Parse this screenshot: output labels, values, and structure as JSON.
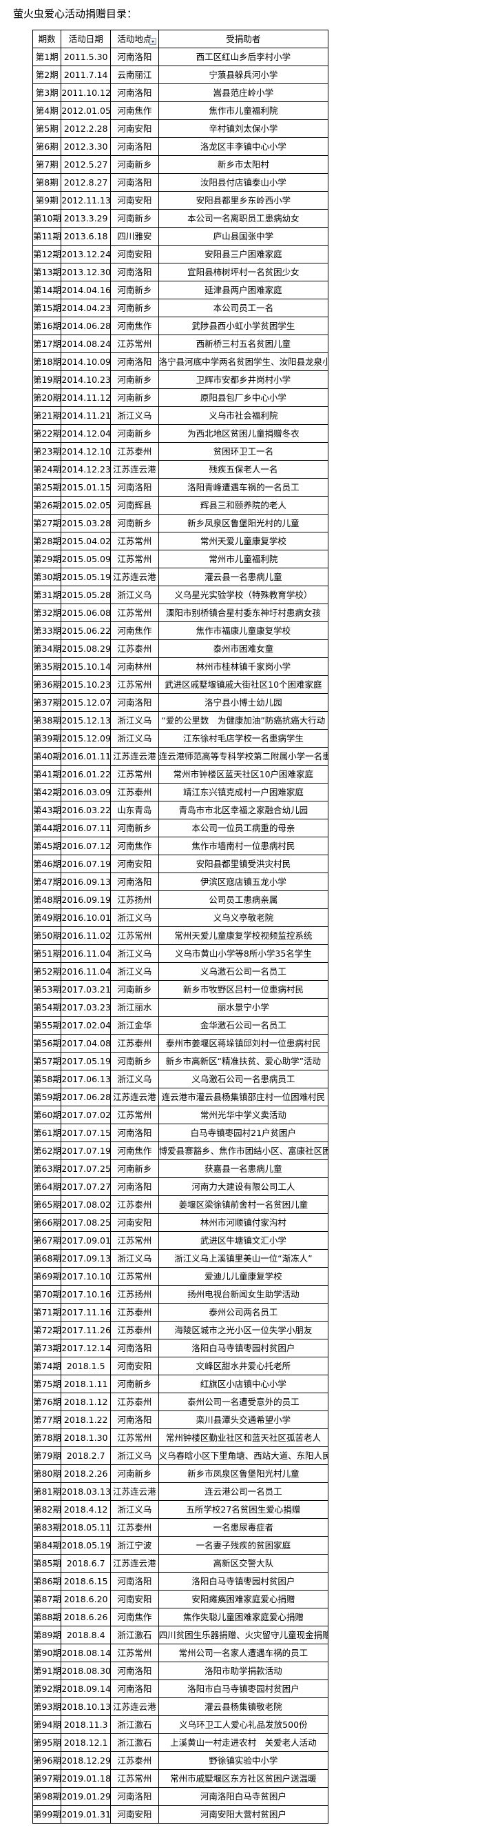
{
  "title": "萤火虫爱心活动捐赠目录：",
  "headers": [
    "期数",
    "活动日期",
    "活动地点",
    "受捐助者"
  ],
  "filter_icon": "dropdown-filter-icon",
  "rows": [
    [
      "第1期",
      "2011.5.30",
      "河南洛阳",
      "西工区红山乡后李村小学"
    ],
    [
      "第2期",
      "2011.7.14",
      "云南丽江",
      "宁蒗县躲兵河小学"
    ],
    [
      "第3期",
      "2011.10.12",
      "河南洛阳",
      "嵩县范庄岭小学"
    ],
    [
      "第4期",
      "2012.01.05",
      "河南焦作",
      "焦作市儿童福利院"
    ],
    [
      "第5期",
      "2012.2.28",
      "河南安阳",
      "辛村镇刘太保小学"
    ],
    [
      "第6期",
      "2012.3.30",
      "河南洛阳",
      "洛龙区丰李镇中心小学"
    ],
    [
      "第7期",
      "2012.5.27",
      "河南新乡",
      "新乡市太阳村"
    ],
    [
      "第8期",
      "2012.8.27",
      "河南洛阳",
      "汝阳县付店镇泰山小学"
    ],
    [
      "第9期",
      "2012.11.13",
      "河南安阳",
      "安阳县都里乡东岭西小学"
    ],
    [
      "第10期",
      "2013.3.29",
      "河南新乡",
      "本公司一名离职员工患病幼女"
    ],
    [
      "第11期",
      "2013.6.18",
      "四川雅安",
      "庐山县国张中学"
    ],
    [
      "第12期",
      "2013.12.24",
      "河南安阳",
      "安阳县三户困难家庭"
    ],
    [
      "第13期",
      "2013.12.30",
      "河南洛阳",
      "宜阳县柿树坪村一名贫困少女"
    ],
    [
      "第14期",
      "2014.04.16",
      "河南新乡",
      "延津县两户困难家庭"
    ],
    [
      "第15期",
      "2014.04.23",
      "河南新乡",
      "本公司员工一名"
    ],
    [
      "第16期",
      "2014.06.28",
      "河南焦作",
      "武陟县西小虹小学贫困学生"
    ],
    [
      "第17期",
      "2014.08.24",
      "江苏常州",
      "西新桥三村五名贫困儿童"
    ],
    [
      "第18期",
      "2014.10.09",
      "河南洛阳",
      "洛宁县河底中学两名贫困学生、汝阳县龙泉小学"
    ],
    [
      "第19期",
      "2014.10.23",
      "河南新乡",
      "卫辉市安都乡井岗村小学"
    ],
    [
      "第20期",
      "2014.11.12",
      "河南新乡",
      "原阳县包厂乡中心小学"
    ],
    [
      "第21期",
      "2014.11.21",
      "浙江义乌",
      "义乌市社会福利院"
    ],
    [
      "第22期",
      "2014.12.04",
      "河南新乡",
      "为西北地区贫困儿童捐赠冬衣"
    ],
    [
      "第23期",
      "2014.12.10",
      "江苏泰州",
      "贫困环卫工一名"
    ],
    [
      "第24期",
      "2014.12.23",
      "江苏连云港",
      "残疾五保老人一名"
    ],
    [
      "第25期",
      "2015.01.15",
      "河南洛阳",
      "洛阳青峰遭遇车祸的一名员工"
    ],
    [
      "第26期",
      "2015.02.05",
      "河南辉县",
      "辉县三和颐养院的老人"
    ],
    [
      "第27期",
      "2015.03.28",
      "河南新乡",
      "新乡凤泉区鲁堡阳光村的儿童"
    ],
    [
      "第28期",
      "2015.04.02",
      "江苏常州",
      "常州天爱儿童康复学校"
    ],
    [
      "第29期",
      "2015.05.09",
      "江苏常州",
      "常州市儿童福利院"
    ],
    [
      "第30期",
      "2015.05.19",
      "江苏连云港",
      "灌云县一名患病儿童"
    ],
    [
      "第31期",
      "2015.05.28",
      "浙江义乌",
      "义乌星光实验学校（特殊教育学校）"
    ],
    [
      "第32期",
      "2015.06.08",
      "江苏常州",
      "溧阳市别桥镇合星村委东神圩村患病女孩"
    ],
    [
      "第33期",
      "2015.06.22",
      "河南焦作",
      "焦作市福康儿童康复学校"
    ],
    [
      "第34期",
      "2015.08.29",
      "江苏泰州",
      "泰州市困难女童"
    ],
    [
      "第35期",
      "2015.10.14",
      "河南林州",
      "林州市桂林镇千家岗小学"
    ],
    [
      "第36期",
      "2015.10.23",
      "江苏常州",
      "武进区戚墅堰镇戚大街社区10个困难家庭"
    ],
    [
      "第37期",
      "2015.12.07",
      "河南洛阳",
      "洛宁县小博士幼儿园"
    ],
    [
      "第38期",
      "2015.12.13",
      "浙江义乌",
      "“爱的公里数　为健康加油”防癌抗癌大行动"
    ],
    [
      "第39期",
      "2015.12.09",
      "浙江义乌",
      "江东徐村毛店学校一名患病学生"
    ],
    [
      "第40期",
      "2016.01.11",
      "江苏连云港",
      "连云港师范高等专科学校第二附属小学一名患病学生"
    ],
    [
      "第41期",
      "2016.01.22",
      "江苏常州",
      "常州市钟楼区蓝天社区10户困难家庭"
    ],
    [
      "第42期",
      "2016.03.09",
      "江苏泰州",
      "靖江东兴镇克成村一户困难家庭"
    ],
    [
      "第43期",
      "2016.03.22",
      "山东青岛",
      "青岛市市北区幸福之家融合幼儿园"
    ],
    [
      "第44期",
      "2016.07.11",
      "河南新乡",
      "本公司一位员工病重的母亲"
    ],
    [
      "第45期",
      "2016.07.12",
      "河南焦作",
      "焦作市墙南村一位患病村民"
    ],
    [
      "第46期",
      "2016.07.19",
      "河南安阳",
      "安阳县都里镇受洪灾村民"
    ],
    [
      "第47期",
      "2016.09.13",
      "河南洛阳",
      "伊滨区寇店镇五龙小学"
    ],
    [
      "第48期",
      "2016.09.19",
      "江苏扬州",
      "公司员工患病亲属"
    ],
    [
      "第49期",
      "2016.10.01",
      "浙江义乌",
      "义乌义亭敬老院"
    ],
    [
      "第50期",
      "2016.11.02",
      "江苏常州",
      "常州天爱儿童康复学校视频监控系统"
    ],
    [
      "第51期",
      "2016.11.04",
      "浙江义乌",
      "义乌市黄山小学等8所小学35名学生"
    ],
    [
      "第52期",
      "2016.11.04",
      "浙江义乌",
      "义乌激石公司一名员工"
    ],
    [
      "第53期",
      "2017.03.21",
      "河南新乡",
      "新乡市牧野区吕村一位患病村民"
    ],
    [
      "第54期",
      "2017.03.23",
      "浙江丽水",
      "丽水景宁小学"
    ],
    [
      "第55期",
      "2017.02.04",
      "浙江金华",
      "金华激石公司一名员工"
    ],
    [
      "第56期",
      "2017.04.08",
      "江苏泰州",
      "泰州市姜堰区蒋垛镇邱刘村一位患病村民"
    ],
    [
      "第57期",
      "2017.05.19",
      "河南新乡",
      "新乡市高新区“精准扶贫、爱心助学”活动"
    ],
    [
      "第58期",
      "2017.06.13",
      "浙江义乌",
      "义乌激石公司一名患病员工"
    ],
    [
      "第59期",
      "2017.06.28",
      "江苏连云港",
      "连云港市灌云县杨集镇邵庄村一位困难村民"
    ],
    [
      "第60期",
      "2017.07.02",
      "江苏常州",
      "常州光华中学义卖活动"
    ],
    [
      "第61期",
      "2017.07.15",
      "河南洛阳",
      "白马寺镇枣园村21户贫困户"
    ],
    [
      "第62期",
      "2017.07.19",
      "河南焦作",
      "博爱县寨豁乡、焦作市团结小区、富康社区困难学生"
    ],
    [
      "第63期",
      "2017.07.25",
      "河南新乡",
      "获嘉县一名患病儿童"
    ],
    [
      "第64期",
      "2017.07.27",
      "河南洛阳",
      "河南力大建设有限公司工人"
    ],
    [
      "第65期",
      "2017.08.02",
      "江苏泰州",
      "姜堰区梁徐镇前舍村一名贫困儿童"
    ],
    [
      "第66期",
      "2017.08.25",
      "河南安阳",
      "林州市河顺镇付家沟村"
    ],
    [
      "第67期",
      "2017.09.01",
      "江苏常州",
      "武进区牛塘镇文汇小学"
    ],
    [
      "第68期",
      "2017.09.13",
      "浙江义乌",
      "浙江义乌上溪镇里美山一位“渐冻人”"
    ],
    [
      "第69期",
      "2017.10.10",
      "江苏常州",
      "爱迪儿儿童康复学校"
    ],
    [
      "第70期",
      "2017.10.16",
      "江苏扬州",
      "扬州电视台新闻女生助学活动"
    ],
    [
      "第71期",
      "2017.11.16",
      "江苏泰州",
      "泰州公司两名员工"
    ],
    [
      "第72期",
      "2017.11.26",
      "江苏泰州",
      "海陵区城市之光小区一位失学小朋友"
    ],
    [
      "第73期",
      "2017.12.14",
      "河南洛阳",
      "洛阳白马寺镇枣园村贫困户"
    ],
    [
      "第74期",
      "2018.1.5",
      "河南安阳",
      "文峰区甜水井爱心托老所"
    ],
    [
      "第75期",
      "2018.1.11",
      "河南新乡",
      "红旗区小店镇中心小学"
    ],
    [
      "第76期",
      "2018.1.12",
      "江苏泰州",
      "泰州公司一名遭受意外的员工"
    ],
    [
      "第77期",
      "2018.1.22",
      "河南洛阳",
      "栾川县潭头交通希望小学"
    ],
    [
      "第78期",
      "2018.1.30",
      "江苏常州",
      "常州钟楼区勤业社区和蓝天社区孤苦老人"
    ],
    [
      "第79期",
      "2018.2.7",
      "浙江义乌",
      "义乌春晗小区下里角塘、西站大道、东阳人民医院"
    ],
    [
      "第80期",
      "2018.2.26",
      "河南新乡",
      "新乡市凤泉区鲁堡阳光村儿童"
    ],
    [
      "第81期",
      "2018.03.13",
      "江苏连云港",
      "连云港公司一名员工"
    ],
    [
      "第82期",
      "2018.4.12",
      "浙江义乌",
      "五所学校27名贫困生爱心捐赠"
    ],
    [
      "第83期",
      "2018.05.11",
      "江苏泰州",
      "一名患尿毒症者"
    ],
    [
      "第84期",
      "2018.05.19",
      "浙江宁波",
      "一名妻子残疾的贫困家庭"
    ],
    [
      "第85期",
      "2018.6.7",
      "江苏连云港",
      "高新区交警大队"
    ],
    [
      "第86期",
      "2018.6.15",
      "河南洛阳",
      "洛阳白马寺镇枣园村贫困户"
    ],
    [
      "第87期",
      "2018.6.20",
      "河南安阳",
      "安阳瘫痪困难家庭爱心捐赠"
    ],
    [
      "第88期",
      "2018.6.26",
      "河南焦作",
      "焦作失聪儿童困难家庭爱心捐赠"
    ],
    [
      "第89期",
      "2018.8.4",
      "浙江激石",
      "四川贫困生乐器捐赠、火灾留守儿童现金捐赠"
    ],
    [
      "第90期",
      "2018.08.14",
      "江苏常州",
      "常州公司一名家人遭遇车祸的员工"
    ],
    [
      "第91期",
      "2018.08.30",
      "河南洛阳",
      "洛阳市助学捐款活动"
    ],
    [
      "第92期",
      "2018.09.14",
      "河南洛阳",
      "洛阳市白马寺镇枣园村贫困户"
    ],
    [
      "第93期",
      "2018.10.13",
      "江苏连云港",
      "灌云县杨集镇敬老院"
    ],
    [
      "第94期",
      "2018.11.3",
      "浙江激石",
      "义乌环卫工人爱心礼品发放500份"
    ],
    [
      "第95期",
      "2018.12.1",
      "浙江激石",
      "上溪黄山一村走进农村　关爱老人活动"
    ],
    [
      "第96期",
      "2018.12.29",
      "江苏泰州",
      "野徐镇实验中小学"
    ],
    [
      "第97期",
      "2019.01.18",
      "江苏常州",
      "常州市戚墅堰区东方社区贫困户送温暖"
    ],
    [
      "第98期",
      "2019.01.29",
      "河南洛阳",
      "河南洛阳白马寺贫困户"
    ],
    [
      "第99期",
      "2019.01.31",
      "河南安阳",
      "河南安阳大营村贫困户"
    ]
  ]
}
